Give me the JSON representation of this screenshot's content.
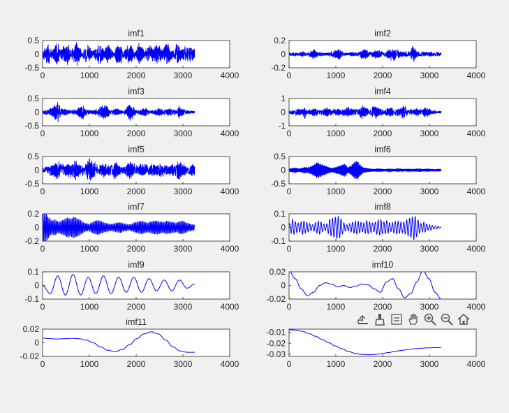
{
  "figure": {
    "background": "#f0f0f0",
    "axes_background": "#ffffff",
    "line_color": "#0000ff",
    "axis_color": "#262626",
    "text_color": "#262626"
  },
  "toolbar": {
    "icons": [
      "export-icon",
      "brush-icon",
      "legend-icon",
      "pan-hand-icon",
      "zoom-in-icon",
      "zoom-out-icon",
      "home-icon"
    ]
  },
  "chart_data": [
    {
      "type": "line",
      "title": "imf1",
      "x": {
        "range": [
          0,
          3250
        ]
      },
      "xlim": [
        0,
        4000
      ],
      "xticks": [
        0,
        1000,
        2000,
        3000,
        4000
      ],
      "ylim": [
        -0.5,
        0.5
      ],
      "yticks": [
        -0.5,
        0,
        0.5
      ],
      "ytick_labels": [
        "-0.5",
        "0",
        "0.5"
      ],
      "series": [
        {
          "values": [
            0.12,
            -0.3,
            0.45,
            -0.1,
            0.38,
            -0.42,
            0.2,
            -0.35,
            0.5,
            -0.2,
            0.3,
            -0.48,
            0.25,
            -0.15,
            0.4,
            -0.38,
            0.1,
            -0.28,
            0.46,
            -0.32,
            0.18,
            -0.44,
            0.35,
            -0.05,
            0.42,
            -0.4,
            0.22,
            -0.3,
            0.38,
            -0.36,
            0.15,
            -0.45,
            0.3,
            -0.12,
            0.44,
            -0.34,
            0.28,
            -0.4,
            0.36,
            -0.22,
            0.48,
            -0.3,
            0.2,
            -0.42,
            0.34,
            -0.18,
            0.4,
            -0.38,
            0.26,
            -0.2
          ]
        }
      ]
    },
    {
      "type": "line",
      "title": "imf2",
      "x": {
        "range": [
          0,
          3250
        ]
      },
      "xlim": [
        0,
        4000
      ],
      "xticks": [
        0,
        1000,
        2000,
        3000,
        4000
      ],
      "ylim": [
        -0.2,
        0.2
      ],
      "yticks": [
        -0.2,
        0,
        0.2
      ],
      "ytick_labels": [
        "-0.2",
        "0",
        "0.2"
      ],
      "series": [
        {
          "values": [
            0.02,
            -0.03,
            0.04,
            -0.02,
            0.05,
            -0.04,
            0.03,
            -0.06,
            0.08,
            -0.05,
            0.04,
            -0.03,
            0.02,
            -0.04,
            0.06,
            -0.07,
            0.09,
            -0.05,
            0.03,
            -0.02,
            0.04,
            -0.03,
            0.05,
            -0.06,
            0.1,
            -0.08,
            0.04,
            -0.05,
            0.07,
            -0.06,
            0.05,
            -0.04,
            0.08,
            -0.1,
            0.12,
            -0.07,
            0.05,
            -0.04,
            0.06,
            -0.05,
            0.15,
            -0.06,
            0.04,
            -0.05,
            0.03,
            -0.04,
            0.05,
            -0.03,
            0.04,
            -0.02
          ]
        }
      ]
    },
    {
      "type": "line",
      "title": "imf3",
      "x": {
        "range": [
          0,
          3250
        ]
      },
      "xlim": [
        0,
        4000
      ],
      "xticks": [
        0,
        1000,
        2000,
        3000,
        4000
      ],
      "ylim": [
        -0.5,
        0.5
      ],
      "yticks": [
        -0.5,
        0,
        0.5
      ],
      "ytick_labels": [
        "-0.5",
        "0",
        "0.5"
      ],
      "series": [
        {
          "values": [
            0.05,
            -0.1,
            0.12,
            -0.2,
            0.3,
            -0.45,
            0.2,
            -0.15,
            0.1,
            -0.08,
            0.12,
            -0.1,
            0.25,
            -0.3,
            0.15,
            -0.1,
            0.08,
            -0.12,
            0.2,
            -0.25,
            0.3,
            -0.2,
            0.1,
            -0.12,
            0.15,
            -0.1,
            0.08,
            -0.15,
            0.35,
            -0.28,
            0.12,
            -0.1,
            0.15,
            -0.2,
            0.12,
            -0.08,
            0.1,
            -0.15,
            0.2,
            -0.12,
            0.1,
            -0.18,
            0.12,
            -0.1,
            0.28,
            -0.15,
            0.1,
            -0.08,
            0.06,
            -0.05
          ]
        }
      ]
    },
    {
      "type": "line",
      "title": "imf4",
      "x": {
        "range": [
          0,
          3250
        ]
      },
      "xlim": [
        0,
        4000
      ],
      "xticks": [
        0,
        1000,
        2000,
        3000,
        4000
      ],
      "ylim": [
        -1,
        1
      ],
      "yticks": [
        -1,
        0,
        1
      ],
      "ytick_labels": [
        "-1",
        "0",
        "1"
      ],
      "series": [
        {
          "values": [
            0.1,
            -0.2,
            0.25,
            -0.3,
            0.2,
            -0.5,
            0.3,
            -0.2,
            0.35,
            -0.3,
            0.2,
            -0.25,
            0.4,
            -0.3,
            0.25,
            -0.35,
            0.3,
            -0.2,
            0.45,
            -0.4,
            0.3,
            -0.25,
            0.35,
            -0.5,
            0.55,
            -0.3,
            0.25,
            -0.45,
            0.6,
            -0.35,
            0.3,
            -0.25,
            0.4,
            -0.35,
            0.3,
            -0.4,
            0.35,
            -0.6,
            0.3,
            -0.25,
            0.2,
            -0.3,
            0.35,
            -0.25,
            0.4,
            -0.3,
            0.2,
            -0.15,
            0.1,
            -0.1
          ]
        }
      ]
    },
    {
      "type": "line",
      "title": "imf5",
      "x": {
        "range": [
          0,
          3250
        ]
      },
      "xlim": [
        0,
        4000
      ],
      "xticks": [
        0,
        1000,
        2000,
        3000,
        4000
      ],
      "ylim": [
        -0.5,
        0.5
      ],
      "yticks": [
        -0.5,
        0,
        0.5
      ],
      "ytick_labels": [
        "-0.5",
        "0",
        "0.5"
      ],
      "series": [
        {
          "values": [
            0.1,
            -0.15,
            0.2,
            -0.25,
            0.3,
            -0.4,
            0.35,
            -0.2,
            0.25,
            -0.3,
            0.45,
            -0.35,
            0.2,
            -0.25,
            0.3,
            -0.48,
            0.4,
            -0.3,
            0.2,
            -0.25,
            0.3,
            -0.2,
            0.25,
            -0.35,
            0.3,
            -0.22,
            0.18,
            -0.25,
            0.35,
            -0.3,
            0.25,
            -0.2,
            0.3,
            -0.25,
            0.2,
            -0.3,
            0.25,
            -0.2,
            0.3,
            -0.25,
            0.2,
            -0.18,
            0.25,
            -0.3,
            0.35,
            -0.3,
            0.2,
            -0.15,
            0.25,
            -0.2
          ]
        }
      ]
    },
    {
      "type": "line",
      "title": "imf6",
      "x": {
        "range": [
          0,
          3250
        ]
      },
      "xlim": [
        0,
        4000
      ],
      "xticks": [
        0,
        1000,
        2000,
        3000,
        4000
      ],
      "ylim": [
        -0.5,
        0.5
      ],
      "yticks": [
        -0.5,
        0,
        0.5
      ],
      "ytick_labels": [
        "-0.5",
        "0",
        "0.5"
      ],
      "series": [
        {
          "values": [
            0.05,
            -0.08,
            0.1,
            -0.06,
            0.08,
            -0.12,
            0.1,
            -0.15,
            0.2,
            -0.3,
            0.25,
            -0.2,
            0.15,
            -0.1,
            0.08,
            -0.12,
            0.15,
            -0.2,
            0.25,
            -0.1,
            0.18,
            -0.3,
            0.35,
            -0.2,
            0.1,
            -0.08,
            0.06,
            -0.05,
            0.05,
            -0.06,
            0.05,
            -0.04,
            0.06,
            -0.05,
            0.04,
            -0.06,
            0.05,
            -0.04,
            0.05,
            -0.05,
            0.04,
            -0.05,
            0.06,
            -0.04,
            0.05,
            -0.05,
            0.04,
            -0.03,
            0.05,
            -0.03
          ]
        }
      ]
    },
    {
      "type": "line",
      "title": "imf7",
      "x": {
        "range": [
          0,
          3250
        ]
      },
      "xlim": [
        0,
        4000
      ],
      "xticks": [
        0,
        1000,
        2000,
        3000,
        4000
      ],
      "ylim": [
        -0.2,
        0.2
      ],
      "yticks": [
        -0.2,
        0,
        0.2
      ],
      "ytick_labels": [
        "-0.2",
        "0",
        "0.2"
      ],
      "series": [
        {
          "values": [
            0.2,
            -0.22,
            0.15,
            -0.1,
            0.12,
            -0.08,
            0.1,
            -0.12,
            0.15,
            -0.13,
            0.16,
            -0.14,
            0.12,
            -0.08,
            0.06,
            -0.05,
            0.08,
            -0.1,
            0.11,
            -0.09,
            0.07,
            -0.06,
            0.05,
            -0.06,
            0.07,
            -0.08,
            0.06,
            -0.05,
            0.04,
            -0.06,
            0.08,
            -0.09,
            0.1,
            -0.08,
            0.07,
            -0.09,
            0.1,
            -0.1,
            0.09,
            -0.08,
            0.1,
            -0.09,
            0.08,
            -0.07,
            0.09,
            -0.1,
            0.08,
            -0.06,
            0.05,
            -0.04
          ]
        }
      ]
    },
    {
      "type": "line",
      "title": "imf8",
      "x": {
        "range": [
          0,
          3250
        ]
      },
      "xlim": [
        0,
        4000
      ],
      "xticks": [
        0,
        1000,
        2000,
        3000,
        4000
      ],
      "ylim": [
        -0.1,
        0.1
      ],
      "yticks": [
        -0.1,
        0,
        0.1
      ],
      "ytick_labels": [
        "-0.1",
        "0",
        "0.1"
      ],
      "series": [
        {
          "values": [
            0.02,
            -0.06,
            0.04,
            -0.03,
            0.05,
            -0.04,
            0.03,
            -0.02,
            0.04,
            -0.05,
            0.03,
            -0.02,
            0.06,
            -0.07,
            0.08,
            -0.08,
            0.04,
            -0.02,
            0.03,
            -0.04,
            0.05,
            -0.04,
            0.03,
            -0.05,
            0.04,
            -0.03,
            0.05,
            -0.06,
            0.04,
            -0.05,
            0.03,
            -0.04,
            0.05,
            -0.04,
            0.04,
            -0.06,
            0.07,
            -0.09,
            0.06,
            -0.03,
            0.04,
            -0.02,
            0.02,
            -0.01,
            0.01,
            0.0
          ]
        }
      ]
    },
    {
      "type": "line",
      "title": "imf9",
      "x": {
        "range": [
          0,
          3250
        ]
      },
      "xlim": [
        0,
        4000
      ],
      "xticks": [
        0,
        1000,
        2000,
        3000,
        4000
      ],
      "ylim": [
        -0.1,
        0.1
      ],
      "yticks": [
        -0.1,
        0,
        0.1
      ],
      "ytick_labels": [
        "-0.1",
        "0",
        "0.1"
      ],
      "series": [
        {
          "values": [
            0.0,
            -0.06,
            0.07,
            -0.07,
            0.08,
            -0.07,
            0.06,
            -0.06,
            0.07,
            -0.06,
            0.06,
            -0.05,
            0.06,
            -0.05,
            0.05,
            -0.04,
            0.04,
            -0.04,
            0.04,
            -0.02,
            0.01
          ]
        }
      ]
    },
    {
      "type": "line",
      "title": "imf10",
      "x": {
        "range": [
          0,
          3250
        ]
      },
      "xlim": [
        0,
        4000
      ],
      "xticks": [
        0,
        1000,
        2000,
        3000,
        4000
      ],
      "ylim": [
        -0.02,
        0.02
      ],
      "yticks": [
        -0.02,
        0,
        0.02
      ],
      "ytick_labels": [
        "-0.02",
        "0",
        "0.02"
      ],
      "series": [
        {
          "values": [
            0.022,
            0.01,
            -0.005,
            -0.015,
            -0.01,
            0.0,
            0.004,
            0.002,
            -0.002,
            0.0,
            -0.003,
            -0.001,
            0.002,
            0.001,
            -0.005,
            -0.01,
            0.005,
            0.01,
            -0.005,
            -0.018,
            -0.012,
            0.005,
            0.022,
            0.01,
            -0.01,
            -0.02
          ]
        }
      ]
    },
    {
      "type": "line",
      "title": "imf11",
      "x": {
        "range": [
          0,
          3250
        ]
      },
      "xlim": [
        0,
        4000
      ],
      "xticks": [
        0,
        1000,
        2000,
        3000,
        4000
      ],
      "ylim": [
        -0.02,
        0.02
      ],
      "yticks": [
        -0.02,
        0,
        0.02
      ],
      "ytick_labels": [
        "-0.02",
        "0",
        "0.02"
      ],
      "series": [
        {
          "values": [
            0.007,
            0.006,
            0.0055,
            0.006,
            0.0065,
            0.006,
            0.004,
            0.0,
            -0.006,
            -0.011,
            -0.013,
            -0.01,
            -0.003,
            0.006,
            0.013,
            0.016,
            0.013,
            0.004,
            -0.006,
            -0.012,
            -0.014,
            -0.014
          ]
        }
      ]
    },
    {
      "type": "line",
      "title": "",
      "x": {
        "range": [
          0,
          3250
        ]
      },
      "xlim": [
        0,
        4000
      ],
      "xticks": [
        0,
        1000,
        2000,
        3000,
        4000
      ],
      "ylim": [
        -0.032,
        -0.007
      ],
      "yticks": [
        -0.03,
        -0.02,
        -0.01
      ],
      "ytick_labels": [
        "-0.03",
        "-0.02",
        "-0.01"
      ],
      "series": [
        {
          "values": [
            -0.0075,
            -0.0078,
            -0.009,
            -0.011,
            -0.0135,
            -0.0165,
            -0.0195,
            -0.0225,
            -0.025,
            -0.0275,
            -0.0292,
            -0.0302,
            -0.0305,
            -0.0302,
            -0.0295,
            -0.0285,
            -0.0275,
            -0.0265,
            -0.0257,
            -0.025,
            -0.0245,
            -0.0242,
            -0.024,
            -0.024
          ]
        }
      ]
    }
  ]
}
